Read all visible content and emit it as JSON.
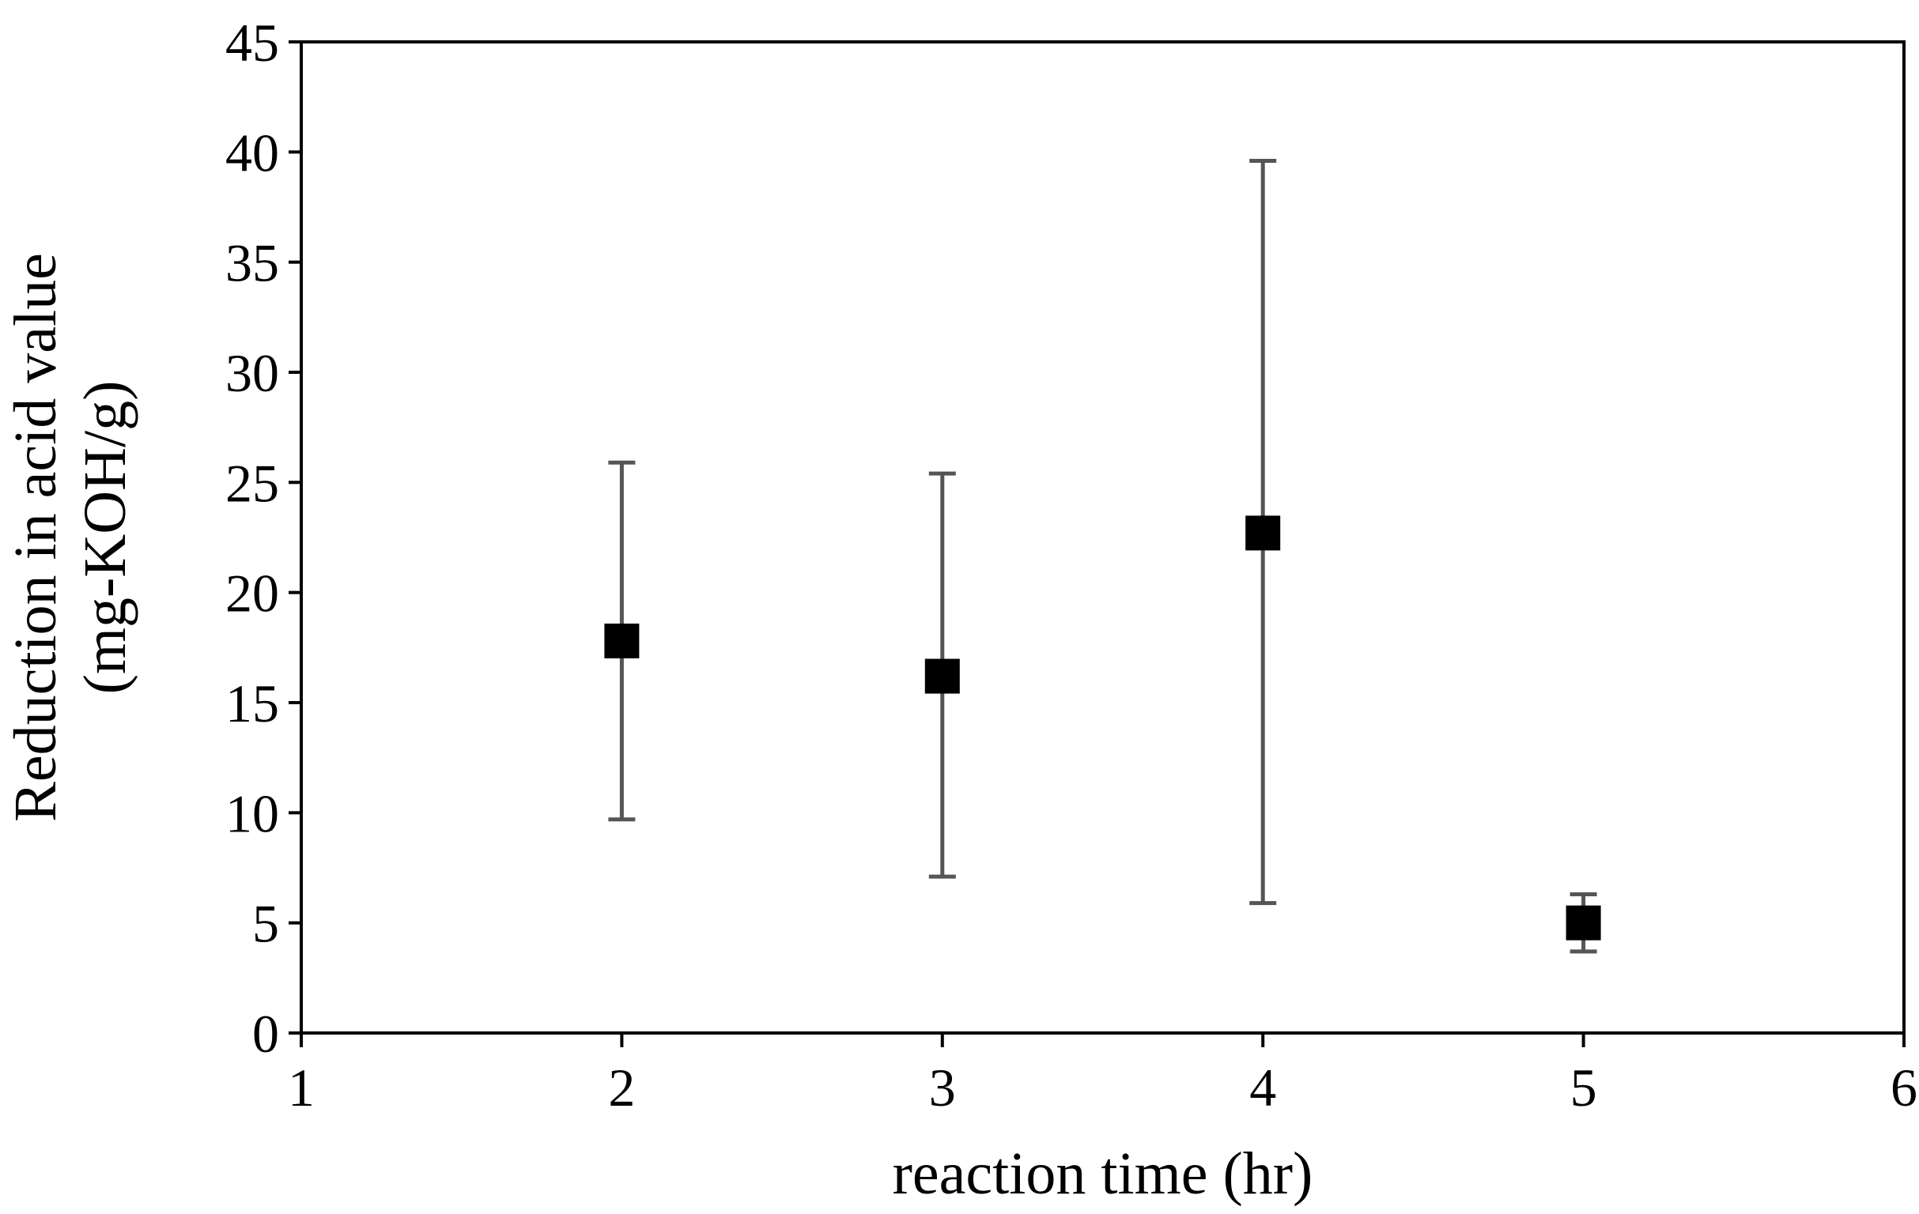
{
  "chart_data": {
    "type": "scatter",
    "title": "",
    "xlabel": "reaction time (hr)",
    "ylabel_lines": [
      "Reduction in acid value",
      "(mg-KOH/g)"
    ],
    "xlim": [
      1,
      6
    ],
    "ylim": [
      0,
      45
    ],
    "x_ticks": [
      1,
      2,
      3,
      4,
      5,
      6
    ],
    "y_ticks": [
      0,
      5,
      10,
      15,
      20,
      25,
      30,
      35,
      40,
      45
    ],
    "grid": false,
    "legend": "none",
    "marker": "square",
    "marker_color": "#000000",
    "error_bar_color": "#555555",
    "points": [
      {
        "x": 2,
        "y": 17.8,
        "y_err_low": 9.7,
        "y_err_high": 25.9
      },
      {
        "x": 3,
        "y": 16.2,
        "y_err_low": 7.1,
        "y_err_high": 25.4
      },
      {
        "x": 4,
        "y": 22.7,
        "y_err_low": 5.9,
        "y_err_high": 39.6
      },
      {
        "x": 5,
        "y": 5.0,
        "y_err_low": 3.7,
        "y_err_high": 6.3
      }
    ]
  }
}
